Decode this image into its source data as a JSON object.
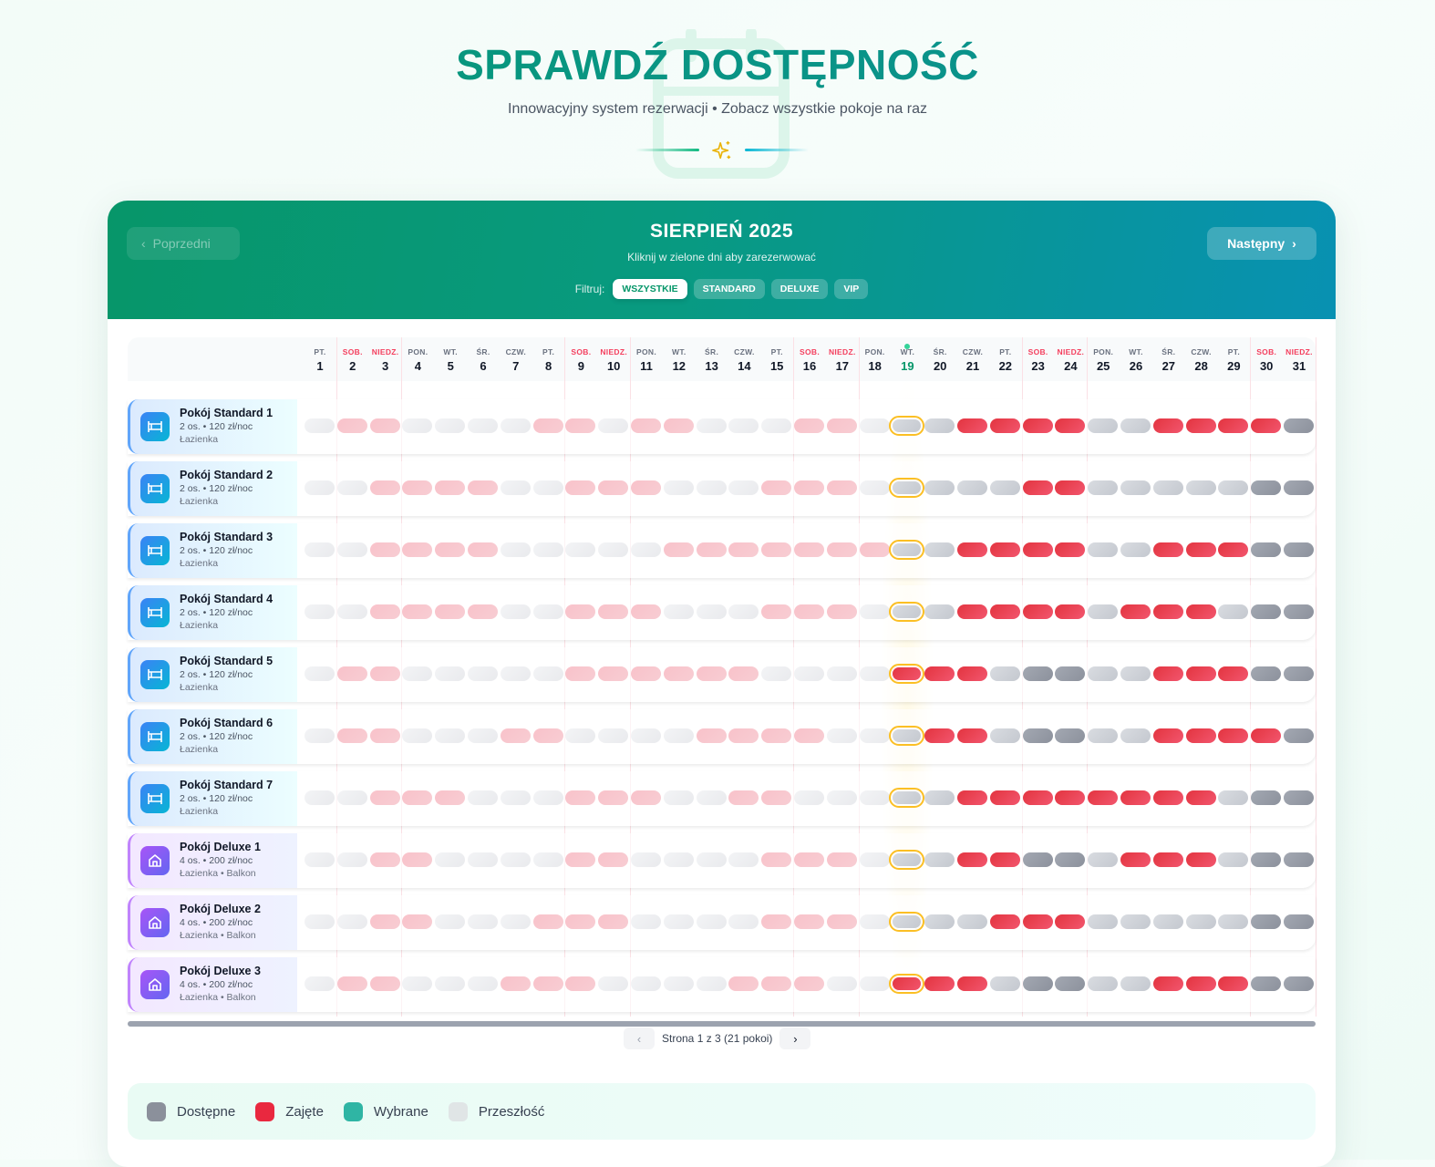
{
  "hero": {
    "title": "SPRAWDŹ DOSTĘPNOŚĆ",
    "subtitle": "Innowacyjny system rezerwacji • Zobacz wszystkie pokoje na raz"
  },
  "calendar": {
    "prev_label": "Poprzedni",
    "next_label": "Następny",
    "month_title": "SIERPIEŃ 2025",
    "hint": "Kliknij w zielone dni aby zarezerwować",
    "filter_label": "Filtruj:",
    "filters": [
      {
        "label": "WSZYSTKIE",
        "active": true
      },
      {
        "label": "STANDARD",
        "active": false
      },
      {
        "label": "DELUXE",
        "active": false
      },
      {
        "label": "VIP",
        "active": false
      }
    ],
    "today": 19,
    "days": [
      {
        "dow": "PT.",
        "day": "1",
        "weekend": false
      },
      {
        "dow": "SOB.",
        "day": "2",
        "weekend": true
      },
      {
        "dow": "NIEDZ.",
        "day": "3",
        "weekend": true
      },
      {
        "dow": "PON.",
        "day": "4",
        "weekend": false
      },
      {
        "dow": "WT.",
        "day": "5",
        "weekend": false
      },
      {
        "dow": "ŚR.",
        "day": "6",
        "weekend": false
      },
      {
        "dow": "CZW.",
        "day": "7",
        "weekend": false
      },
      {
        "dow": "PT.",
        "day": "8",
        "weekend": false
      },
      {
        "dow": "SOB.",
        "day": "9",
        "weekend": true
      },
      {
        "dow": "NIEDZ.",
        "day": "10",
        "weekend": true
      },
      {
        "dow": "PON.",
        "day": "11",
        "weekend": false
      },
      {
        "dow": "WT.",
        "day": "12",
        "weekend": false
      },
      {
        "dow": "ŚR.",
        "day": "13",
        "weekend": false
      },
      {
        "dow": "CZW.",
        "day": "14",
        "weekend": false
      },
      {
        "dow": "PT.",
        "day": "15",
        "weekend": false
      },
      {
        "dow": "SOB.",
        "day": "16",
        "weekend": true
      },
      {
        "dow": "NIEDZ.",
        "day": "17",
        "weekend": true
      },
      {
        "dow": "PON.",
        "day": "18",
        "weekend": false
      },
      {
        "dow": "WT.",
        "day": "19",
        "weekend": false
      },
      {
        "dow": "ŚR.",
        "day": "20",
        "weekend": false
      },
      {
        "dow": "CZW.",
        "day": "21",
        "weekend": false
      },
      {
        "dow": "PT.",
        "day": "22",
        "weekend": false
      },
      {
        "dow": "SOB.",
        "day": "23",
        "weekend": true
      },
      {
        "dow": "NIEDZ.",
        "day": "24",
        "weekend": true
      },
      {
        "dow": "PON.",
        "day": "25",
        "weekend": false
      },
      {
        "dow": "WT.",
        "day": "26",
        "weekend": false
      },
      {
        "dow": "ŚR.",
        "day": "27",
        "weekend": false
      },
      {
        "dow": "CZW.",
        "day": "28",
        "weekend": false
      },
      {
        "dow": "PT.",
        "day": "29",
        "weekend": false
      },
      {
        "dow": "SOB.",
        "day": "30",
        "weekend": true
      },
      {
        "dow": "NIEDZ.",
        "day": "31",
        "weekend": true
      }
    ],
    "state_legend": {
      "p": "past-free",
      "x": "past-booked",
      "a": "available",
      "b": "booked"
    },
    "rooms": [
      {
        "name": "Pokój Standard 1",
        "meta": "2 os. • 120 zł/noc",
        "amenities": "Łazienka",
        "type": "standard",
        "states": "pxxppppxxpxxpppxxpaabbbbaabbbba"
      },
      {
        "name": "Pokój Standard 2",
        "meta": "2 os. • 120 zł/noc",
        "amenities": "Łazienka",
        "type": "standard",
        "states": "ppxxxxppxxxpppxxxpaaaabbaaaaaaa"
      },
      {
        "name": "Pokój Standard 3",
        "meta": "2 os. • 120 zł/noc",
        "amenities": "Łazienka",
        "type": "standard",
        "states": "ppxxxxpppppxxxxxxxaabbbbaabbbaa"
      },
      {
        "name": "Pokój Standard 4",
        "meta": "2 os. • 120 zł/noc",
        "amenities": "Łazienka",
        "type": "standard",
        "states": "ppxxxxppxxxpppxxxpaabbbbabbbaaa"
      },
      {
        "name": "Pokój Standard 5",
        "meta": "2 os. • 120 zł/noc",
        "amenities": "Łazienka",
        "type": "standard",
        "states": "pxxpppppxxxxxxppppbbbaaaaabbbaa"
      },
      {
        "name": "Pokój Standard 6",
        "meta": "2 os. • 120 zł/noc",
        "amenities": "Łazienka",
        "type": "standard",
        "states": "pxxpppxxppppxxxxppabbaaaaabbbba"
      },
      {
        "name": "Pokój Standard 7",
        "meta": "2 os. • 120 zł/noc",
        "amenities": "Łazienka",
        "type": "standard",
        "states": "ppxxxpppxxxppxxpppaabbbbbbbbaaa"
      },
      {
        "name": "Pokój Deluxe 1",
        "meta": "4 os. • 200 zł/noc",
        "amenities": "Łazienka • Balkon",
        "type": "deluxe",
        "states": "ppxxppppxxppppxxxpaabbaaabbbaaa"
      },
      {
        "name": "Pokój Deluxe 2",
        "meta": "4 os. • 200 zł/noc",
        "amenities": "Łazienka • Balkon",
        "type": "deluxe",
        "states": "ppxxpppxxxppppxxxpaaabbbaaaaaaa"
      },
      {
        "name": "Pokój Deluxe 3",
        "meta": "4 os. • 200 zł/noc",
        "amenities": "Łazienka • Balkon",
        "type": "deluxe",
        "states": "pxxpppxxxppppxxxppbbbaaaaabbbaa"
      }
    ],
    "pagination": {
      "text": "Strona 1 z 3 (21 pokoi)",
      "prev_icon": "chevron-left-icon",
      "next_icon": "chevron-right-icon"
    }
  },
  "legend": [
    {
      "label": "Dostępne",
      "color": "#8b909b"
    },
    {
      "label": "Zajęte",
      "color": "#e9283f"
    },
    {
      "label": "Wybrane",
      "color": "#2fb5a4"
    },
    {
      "label": "Przeszłość",
      "color": "#e0e5e6"
    }
  ],
  "colors": {
    "accent": "#059669",
    "header_end": "#0891b2",
    "today_border": "#fbbf24"
  }
}
